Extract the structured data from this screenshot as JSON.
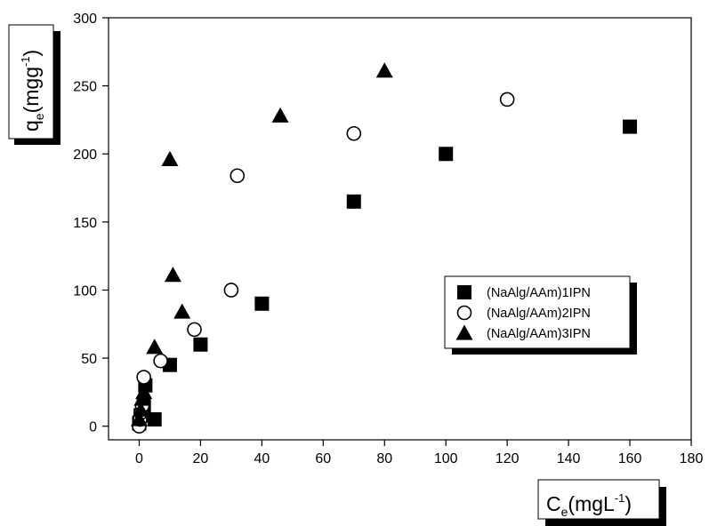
{
  "chart_data": {
    "type": "scatter",
    "title": "",
    "xlabel": "C",
    "xlabel_sub": "e",
    "xlabel_rest": "(mgL",
    "xlabel_sup": "-1",
    "xlabel_end": ")",
    "ylabel": "q",
    "ylabel_sub": "e",
    "ylabel_rest": "(mgg",
    "ylabel_sup": "-1",
    "ylabel_end": ")",
    "xlim": [
      -10,
      180
    ],
    "ylim": [
      -10,
      300
    ],
    "xticks": [
      0,
      20,
      40,
      60,
      80,
      100,
      120,
      140,
      160,
      180
    ],
    "yticks": [
      0,
      50,
      100,
      150,
      200,
      250,
      300
    ],
    "grid": false,
    "legend_position": "center-right",
    "series": [
      {
        "name": "(NaAlg/AAm)1IPN",
        "marker": "filled-square",
        "points": [
          [
            0,
            2
          ],
          [
            0.5,
            8
          ],
          [
            1,
            10
          ],
          [
            1.5,
            15
          ],
          [
            2,
            30
          ],
          [
            5,
            5
          ],
          [
            10,
            45
          ],
          [
            20,
            60
          ],
          [
            40,
            90
          ],
          [
            70,
            165
          ],
          [
            100,
            200
          ],
          [
            160,
            220
          ]
        ]
      },
      {
        "name": "(NaAlg/AAm)2IPN",
        "marker": "open-circle",
        "points": [
          [
            0,
            0
          ],
          [
            0.3,
            5
          ],
          [
            0.6,
            10
          ],
          [
            1,
            15
          ],
          [
            1.5,
            36
          ],
          [
            7,
            48
          ],
          [
            18,
            71
          ],
          [
            30,
            100
          ],
          [
            32,
            184
          ],
          [
            70,
            215
          ],
          [
            120,
            240
          ]
        ]
      },
      {
        "name": "(NaAlg/AAm)3IPN",
        "marker": "filled-triangle",
        "points": [
          [
            0,
            5
          ],
          [
            0.5,
            12
          ],
          [
            1,
            20
          ],
          [
            1.5,
            25
          ],
          [
            5,
            58
          ],
          [
            11,
            111
          ],
          [
            10,
            196
          ],
          [
            14,
            84
          ],
          [
            46,
            228
          ],
          [
            80,
            261
          ]
        ]
      }
    ]
  }
}
